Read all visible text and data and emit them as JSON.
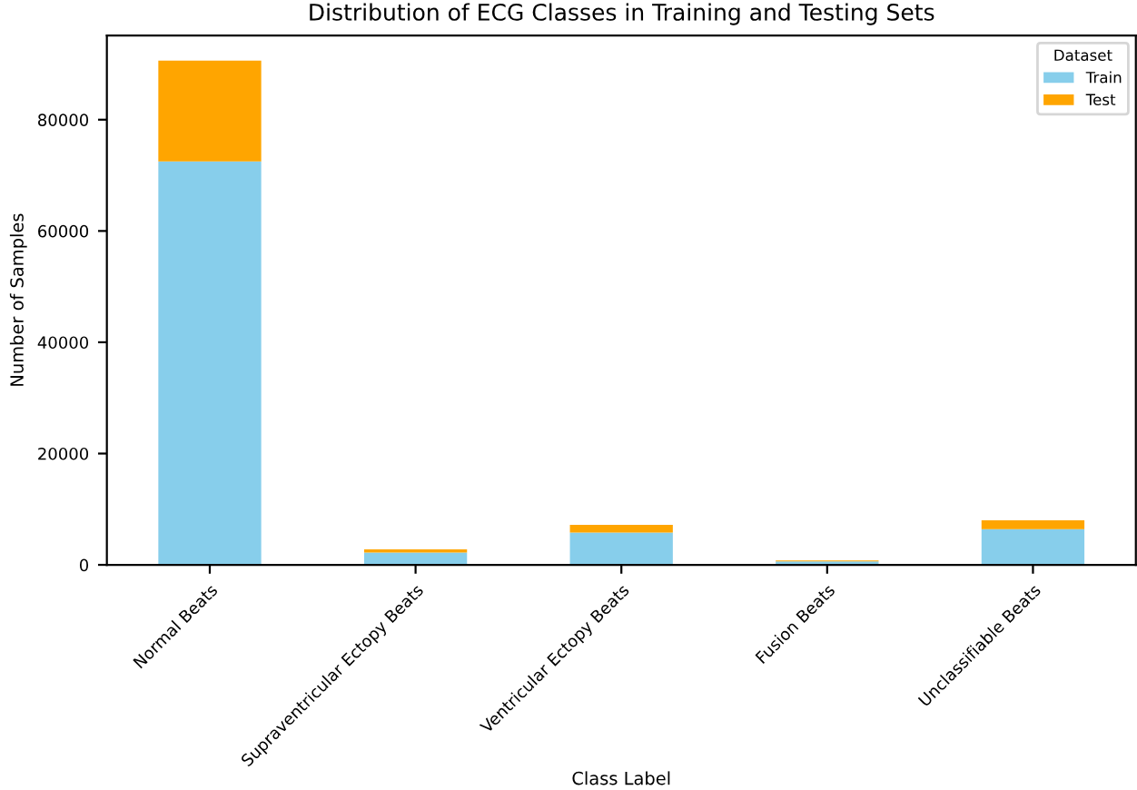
{
  "chart_data": {
    "type": "bar",
    "stacked": true,
    "title": "Distribution of ECG Classes in Training and Testing Sets",
    "xlabel": "Class Label",
    "ylabel": "Number of Samples",
    "legend_title": "Dataset",
    "legend": "top right",
    "grid": false,
    "categories": [
      "Normal Beats",
      "Supraventricular Ectopy Beats",
      "Ventricular Ectopy Beats",
      "Fusion Beats",
      "Unclassifiable Beats"
    ],
    "series": [
      {
        "name": "Train",
        "color": "#87ceeb",
        "values": [
          72500,
          2200,
          5800,
          600,
          6400
        ]
      },
      {
        "name": "Test",
        "color": "#ffa500",
        "values": [
          18100,
          600,
          1400,
          200,
          1600
        ]
      }
    ],
    "ylim": [
      0,
      95118
    ],
    "yticks": [
      0,
      20000,
      40000,
      60000,
      80000
    ]
  }
}
